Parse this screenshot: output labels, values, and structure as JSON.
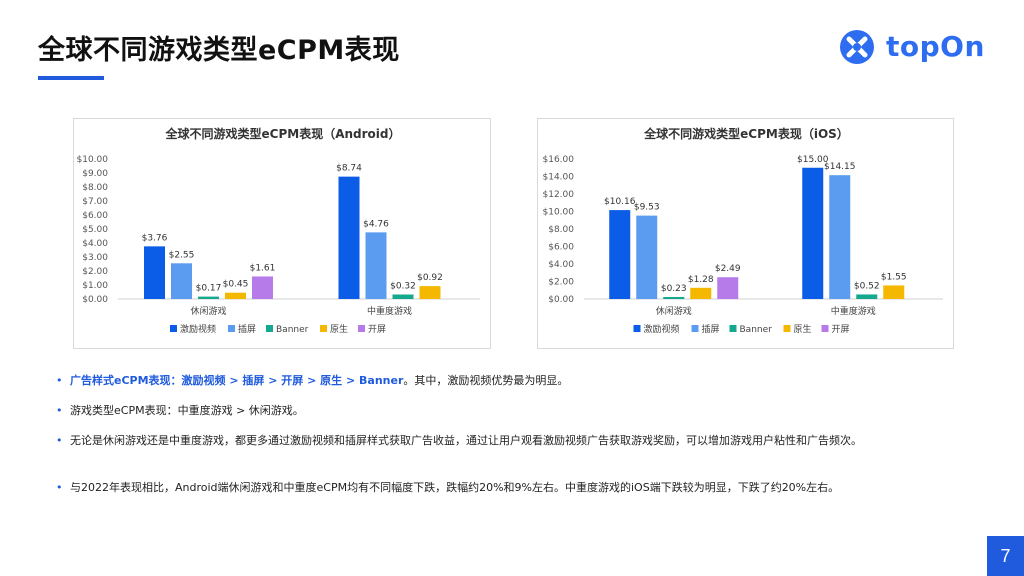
{
  "page": {
    "title": "全球不同游戏类型eCPM表现",
    "page_number": "7",
    "accent_color": "#1f5bdc"
  },
  "logo": {
    "text": "topOn",
    "icon": "topon-logo-icon"
  },
  "legend_colors": {
    "激励视频": "#0b5ce6",
    "插屏": "#5b9cf0",
    "Banner": "#14a88f",
    "原生": "#f5b800",
    "开屏": "#b67be8"
  },
  "chart_data": [
    {
      "type": "bar",
      "title": "全球不同游戏类型eCPM表现（Android）",
      "categories": [
        "休闲游戏",
        "中重度游戏"
      ],
      "series": [
        {
          "name": "激励视频",
          "values": [
            3.76,
            8.74
          ],
          "labels": [
            "$3.76",
            "$8.74"
          ]
        },
        {
          "name": "插屏",
          "values": [
            2.55,
            4.76
          ],
          "labels": [
            "$2.55",
            "$4.76"
          ]
        },
        {
          "name": "Banner",
          "values": [
            0.17,
            0.32
          ],
          "labels": [
            "$0.17",
            "$0.32"
          ]
        },
        {
          "name": "原生",
          "values": [
            0.45,
            0.92
          ],
          "labels": [
            "$0.45",
            "$0.92"
          ]
        },
        {
          "name": "开屏",
          "values": [
            1.61,
            null
          ],
          "labels": [
            "$1.61",
            ""
          ]
        }
      ],
      "ylim": [
        0,
        10
      ],
      "yticks": [
        "$0.00",
        "$1.00",
        "$2.00",
        "$3.00",
        "$4.00",
        "$5.00",
        "$6.00",
        "$7.00",
        "$8.00",
        "$9.00",
        "$10.00"
      ],
      "legend": "bottom",
      "grid": false
    },
    {
      "type": "bar",
      "title": "全球不同游戏类型eCPM表现（iOS）",
      "categories": [
        "休闲游戏",
        "中重度游戏"
      ],
      "series": [
        {
          "name": "激励视频",
          "values": [
            10.16,
            15.0
          ],
          "labels": [
            "$10.16",
            "$15.00"
          ]
        },
        {
          "name": "插屏",
          "values": [
            9.53,
            14.15
          ],
          "labels": [
            "$9.53",
            "$14.15"
          ]
        },
        {
          "name": "Banner",
          "values": [
            0.23,
            0.52
          ],
          "labels": [
            "$0.23",
            "$0.52"
          ]
        },
        {
          "name": "原生",
          "values": [
            1.28,
            1.55
          ],
          "labels": [
            "$1.28",
            "$1.55"
          ]
        },
        {
          "name": "开屏",
          "values": [
            2.49,
            null
          ],
          "labels": [
            "$2.49",
            ""
          ]
        }
      ],
      "ylim": [
        0,
        16
      ],
      "yticks": [
        "$0.00",
        "$2.00",
        "$4.00",
        "$6.00",
        "$8.00",
        "$10.00",
        "$12.00",
        "$14.00",
        "$16.00"
      ],
      "legend": "bottom",
      "grid": false
    }
  ],
  "bullets": [
    {
      "highlight": "广告样式eCPM表现：激励视频 > 插屏 > 开屏 > 原生 > Banner",
      "text": "。其中，激励视频优势最为明显。"
    },
    {
      "highlight": "",
      "text": "游戏类型eCPM表现：中重度游戏 > 休闲游戏。"
    },
    {
      "highlight": "",
      "text": "无论是休闲游戏还是中重度游戏，都更多通过激励视频和插屏样式获取广告收益，通过让用户观看激励视频广告获取游戏奖励，可以增加游戏用户粘性和广告频次。"
    },
    {
      "highlight": "",
      "text": "与2022年表现相比，Android端休闲游戏和中重度eCPM均有不同幅度下跌，跌幅约20%和9%左右。中重度游戏的iOS端下跌较为明显，下跌了约20%左右。"
    }
  ],
  "bullet_marker": "•"
}
